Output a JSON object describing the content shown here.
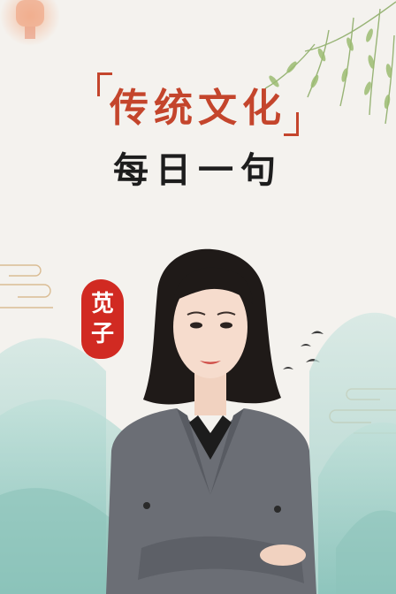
{
  "poster": {
    "title": "传统文化",
    "subtitle": "每日一句",
    "seal_char_1": "苋",
    "seal_char_2": "子"
  },
  "colors": {
    "title": "#c4452c",
    "seal": "#d12a22",
    "background": "#f4f2ee",
    "mountain": "#a7d3cc",
    "blazer": "#6b6e75"
  },
  "icons": [
    "willow-branch-icon",
    "cloud-pattern-icon",
    "bird-icon",
    "lantern-icon"
  ]
}
